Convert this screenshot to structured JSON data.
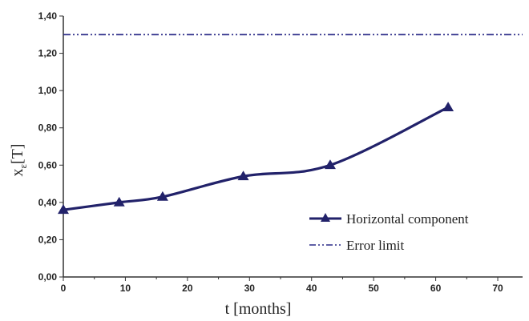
{
  "chart_data": {
    "type": "line",
    "xlabel": "t [months]",
    "ylabel_main": "x",
    "ylabel_sub": "ε",
    "ylabel_unit": "[T]",
    "xlim": [
      0,
      74
    ],
    "ylim": [
      0,
      1.4
    ],
    "x_ticks": [
      0,
      10,
      20,
      30,
      40,
      50,
      60,
      70
    ],
    "x_tick_labels": [
      "0",
      "10",
      "20",
      "30",
      "40",
      "50",
      "60",
      "70"
    ],
    "y_ticks": [
      0,
      0.2,
      0.4,
      0.6,
      0.8,
      1.0,
      1.2,
      1.4
    ],
    "y_tick_labels": [
      "0,00",
      "0,20",
      "0,40",
      "0,60",
      "0,80",
      "1,00",
      "1,20",
      "1,40"
    ],
    "grid": false,
    "legend_position": "lower-right",
    "series": [
      {
        "name": "Horizontal component",
        "style": "solid-with-triangle-markers",
        "color": "#22226a",
        "x": [
          0,
          9,
          16,
          29,
          43,
          62
        ],
        "y": [
          0.36,
          0.4,
          0.43,
          0.54,
          0.6,
          0.91
        ]
      },
      {
        "name": "Error limit",
        "style": "dash-dot-dot",
        "color": "#2b2b88",
        "x": [
          0,
          74
        ],
        "y": [
          1.3,
          1.3
        ]
      }
    ]
  }
}
